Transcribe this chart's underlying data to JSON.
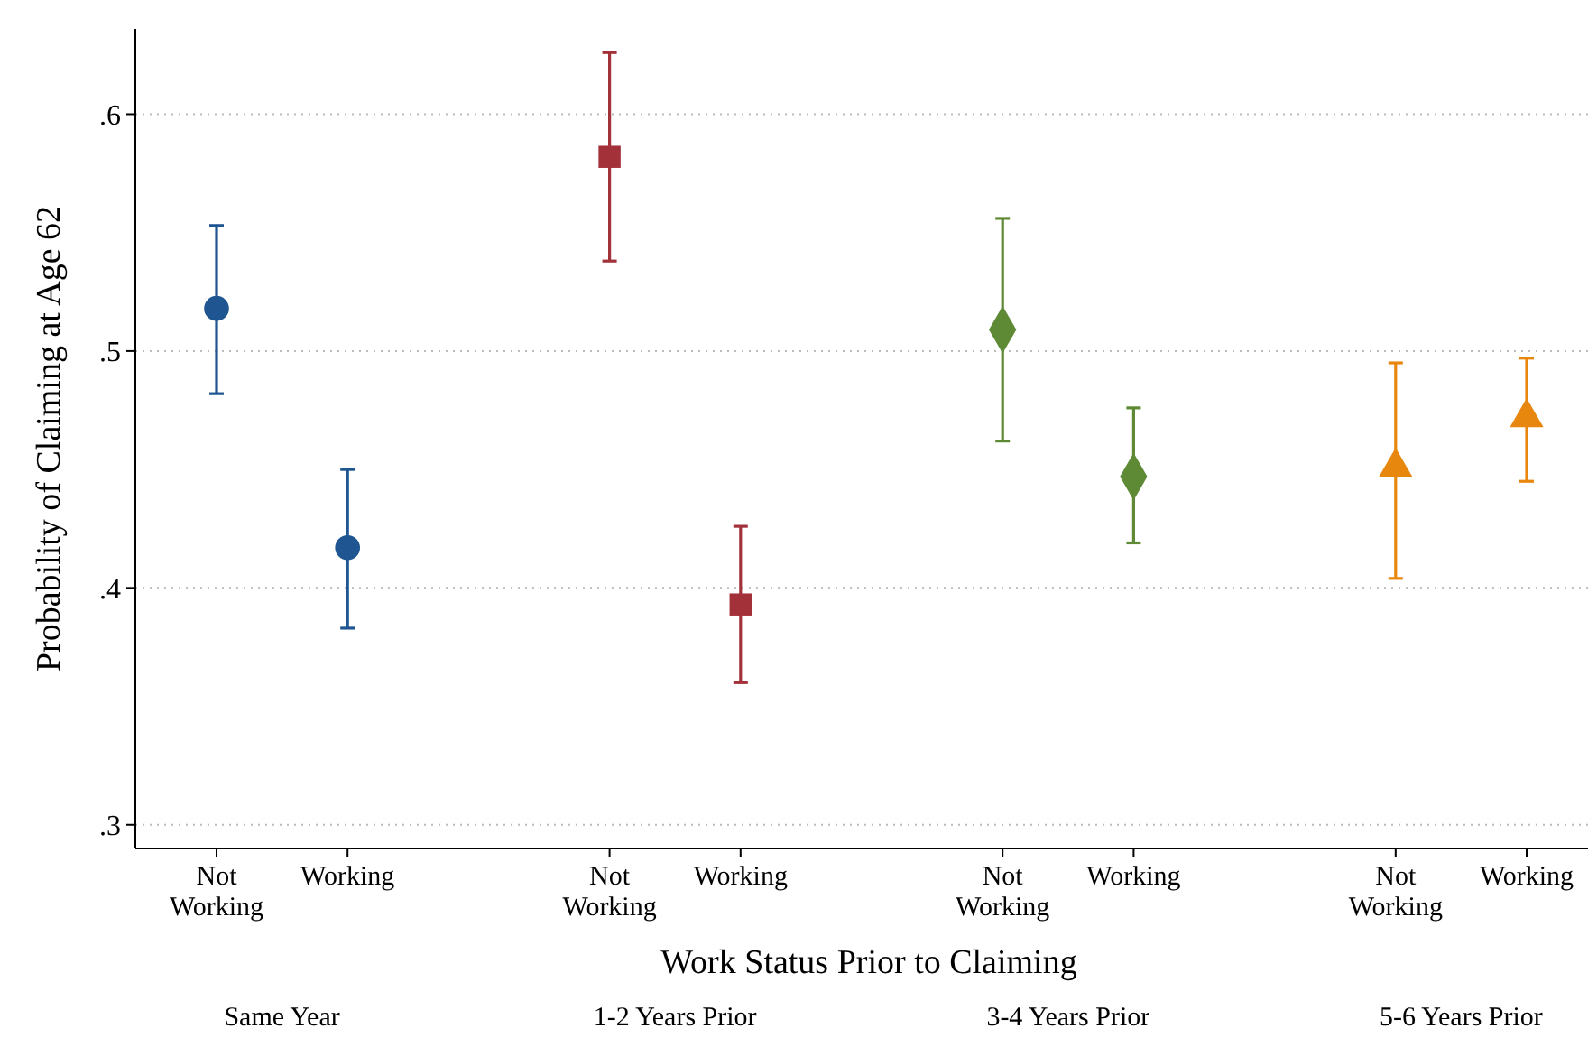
{
  "chart_data": {
    "type": "scatter",
    "xlabel": "Work Status Prior to Claiming",
    "ylabel": "Probability of Claiming at Age 62",
    "categories": [
      "Not Working",
      "Working",
      null,
      "Not Working",
      "Working",
      null,
      "Not Working",
      "Working",
      null,
      "Not Working",
      "Working"
    ],
    "ylim": [
      0.29,
      0.636
    ],
    "yticks": [
      {
        "value": 0.3,
        "label": ".3"
      },
      {
        "value": 0.4,
        "label": ".4"
      },
      {
        "value": 0.5,
        "label": ".5"
      },
      {
        "value": 0.6,
        "label": ".6"
      }
    ],
    "grid": "y",
    "line_style": "dotted",
    "annotations": [
      "Same Year",
      "1-2 Years Prior",
      "3-4 Years Prior",
      "5-6 Years Prior"
    ],
    "series": [
      {
        "color": "#1f5591",
        "marker": "circle",
        "values": [
          0.518,
          0.417,
          null,
          null,
          null,
          null,
          null,
          null,
          null,
          null,
          null
        ],
        "errors": [
          [
            0.482,
            0.553
          ],
          [
            0.383,
            0.45
          ],
          null,
          null,
          null,
          null,
          null,
          null,
          null,
          null,
          null
        ]
      },
      {
        "color": "#a3313a",
        "marker": "square",
        "values": [
          null,
          null,
          null,
          0.582,
          0.393,
          null,
          null,
          null,
          null,
          null,
          null
        ],
        "errors": [
          null,
          null,
          null,
          [
            0.538,
            0.626
          ],
          [
            0.36,
            0.426
          ],
          null,
          null,
          null,
          null,
          null,
          null
        ]
      },
      {
        "color": "#5f8a35",
        "marker": "diamond",
        "values": [
          null,
          null,
          null,
          null,
          null,
          null,
          0.509,
          0.447,
          null,
          null,
          null
        ],
        "errors": [
          null,
          null,
          null,
          null,
          null,
          null,
          [
            0.462,
            0.556
          ],
          [
            0.419,
            0.476
          ],
          null,
          null,
          null
        ]
      },
      {
        "color": "#e8870e",
        "marker": "triangle",
        "values": [
          null,
          null,
          null,
          null,
          null,
          null,
          null,
          null,
          null,
          0.451,
          0.472
        ],
        "errors": [
          null,
          null,
          null,
          null,
          null,
          null,
          null,
          null,
          null,
          [
            0.404,
            0.495
          ],
          [
            0.445,
            0.497
          ]
        ]
      }
    ]
  }
}
